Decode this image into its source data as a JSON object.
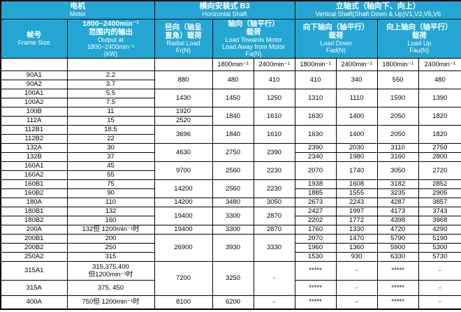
{
  "colors": {
    "header_bg": "#23a6d4",
    "header_text": "#ffffff",
    "border": "#000000",
    "body_text": "#000000",
    "page_bg": "#ffffff"
  },
  "table": {
    "header_row1": [
      {
        "name": "motor-group-header",
        "zh": "电机",
        "en": "Motor",
        "cs": 2
      },
      {
        "name": "horizontal-shaft-group-header",
        "zh": "横向安装式 B3",
        "en": "Horizontal Shaft",
        "cs": 3
      },
      {
        "name": "vertical-shaft-group-header",
        "zh": "立轴式（轴向下、向上）",
        "en": "Vertical Shaft(Shaft Down & Up)V1,V3,V5,V6",
        "cs": 4
      }
    ],
    "header_row2": [
      {
        "name": "frame-size-header",
        "zh": "帧号",
        "en": "Frame Size",
        "cs": 1
      },
      {
        "name": "output-header",
        "zh": "1800~2400min⁻¹\n范围内的输出",
        "en": "Output at\n1800~2400min⁻¹\n(kW)",
        "cs": 1
      },
      {
        "name": "radial-load-header",
        "zh": "径向（轴呈\n直角）载荷",
        "en": "Radial Load\nFr(N)",
        "cs": 1
      },
      {
        "name": "axial-load-header",
        "zh": "轴向（轴平行）\n载荷",
        "en": "Load Towards Motor\nLoad Away from Motor\nFa(N)",
        "cs": 2
      },
      {
        "name": "load-down-header",
        "zh": "向下轴向（轴平行）\n载荷",
        "en": "Load Down\nFad(N)",
        "cs": 2
      },
      {
        "name": "load-up-header",
        "zh": "向上轴向（轴平行）\n载荷",
        "en": "Load Up\nFau(N)",
        "cs": 2
      }
    ],
    "header_row3": [
      "",
      "",
      "",
      "1800min⁻¹",
      "2400min⁻¹",
      "1800min⁻¹",
      "2400min⁻¹",
      "1800min⁻¹",
      "2400min⁻¹"
    ],
    "columns": [
      "frame",
      "output",
      "fr",
      "fa-1800",
      "fa-2400",
      "fad-1800",
      "fad-2400",
      "fau-1800",
      "fau-2400"
    ],
    "rows": [
      [
        "90A1",
        "2.2",
        {
          "v": "880",
          "rs": 2
        },
        {
          "v": "480",
          "rs": 2
        },
        {
          "v": "410",
          "rs": 2
        },
        {
          "v": "410",
          "rs": 2
        },
        {
          "v": "340",
          "rs": 2
        },
        {
          "v": "550",
          "rs": 2
        },
        {
          "v": "480",
          "rs": 2
        }
      ],
      [
        "90A2",
        "3.7"
      ],
      [
        "100A1",
        "5.5",
        {
          "v": "1430",
          "rs": 2
        },
        {
          "v": "1450",
          "rs": 2
        },
        {
          "v": "1250",
          "rs": 2
        },
        {
          "v": "1310",
          "rs": 2
        },
        {
          "v": "1110",
          "rs": 2
        },
        {
          "v": "1590",
          "rs": 2
        },
        {
          "v": "1390",
          "rs": 2
        }
      ],
      [
        "100A2",
        "7.5"
      ],
      [
        "100B",
        "11",
        "1920",
        {
          "v": "1840",
          "rs": 2
        },
        {
          "v": "1610",
          "rs": 2
        },
        {
          "v": "1630",
          "rs": 2
        },
        {
          "v": "1400",
          "rs": 2
        },
        {
          "v": "2050",
          "rs": 2
        },
        {
          "v": "1820",
          "rs": 2
        }
      ],
      [
        "112A",
        "15",
        "2520"
      ],
      [
        "112B1",
        "18.5",
        {
          "v": "3696",
          "rs": 2
        },
        {
          "v": "1840",
          "rs": 2
        },
        {
          "v": "1610",
          "rs": 2
        },
        {
          "v": "1630",
          "rs": 2
        },
        {
          "v": "1400",
          "rs": 2
        },
        {
          "v": "2050",
          "rs": 2
        },
        {
          "v": "1820",
          "rs": 2
        }
      ],
      [
        "112B2",
        "22"
      ],
      [
        "132A",
        "30",
        {
          "v": "4630",
          "rs": 2
        },
        {
          "v": "2750",
          "rs": 2
        },
        {
          "v": "2390",
          "rs": 2
        },
        "2390",
        "2030",
        "3110",
        "2750"
      ],
      [
        "132B",
        "37",
        "2340",
        "1980",
        "3160",
        "2800"
      ],
      [
        "160A1",
        "45",
        {
          "v": "9700",
          "rs": 2
        },
        {
          "v": "2560",
          "rs": 2
        },
        {
          "v": "2230",
          "rs": 2
        },
        {
          "v": "2070",
          "rs": 2
        },
        {
          "v": "1740",
          "rs": 2
        },
        {
          "v": "3050",
          "rs": 2
        },
        {
          "v": "2720",
          "rs": 2
        }
      ],
      [
        "160A2",
        "55"
      ],
      [
        "160B1",
        "75",
        {
          "v": "14200",
          "rs": 2
        },
        {
          "v": "2560",
          "rs": 2
        },
        {
          "v": "2230",
          "rs": 2
        },
        "1938",
        "1608",
        "3182",
        "2852"
      ],
      [
        "160B2",
        "90",
        "1885",
        "1555",
        "3235",
        "2905"
      ],
      [
        "180A",
        "110",
        "14200",
        "3480",
        "3050",
        "2673",
        "2243",
        "4287",
        "3857"
      ],
      [
        "180B1",
        "132",
        {
          "v": "19400",
          "rs": 2
        },
        {
          "v": "3300",
          "rs": 2
        },
        {
          "v": "2870",
          "rs": 2
        },
        "2427",
        "1997",
        "4173",
        "3743"
      ],
      [
        "180B2",
        "160",
        "2202",
        "1772",
        "4398",
        "3968"
      ],
      [
        "200A",
        "132但 1200min⁻¹时",
        "19400",
        "3300",
        "2870",
        "1760",
        "1330",
        "4720",
        "4290"
      ],
      [
        "200B1",
        "200",
        {
          "v": "26900",
          "rs": 3
        },
        {
          "v": "3930",
          "rs": 3
        },
        {
          "v": "3330",
          "rs": 3
        },
        "2070",
        "1470",
        "5790",
        "5190"
      ],
      [
        "200B2",
        "250",
        "1960",
        "1360",
        "5900",
        "5300"
      ],
      [
        "250A2",
        "315",
        "1530",
        "930",
        "6330",
        "5730"
      ],
      [
        "315A1",
        "315,375,400\n但1200min⁻¹时",
        {
          "v": "7200",
          "rs": 2
        },
        {
          "v": "3250",
          "rs": 2
        },
        {
          "v": "-",
          "rs": 2
        },
        "*****",
        "-",
        "*****",
        "-"
      ],
      [
        "315A",
        "375, 450",
        "*****",
        "-",
        "*****",
        "-"
      ],
      [
        "400A",
        "750但 1200min⁻¹时",
        "8100",
        "6200",
        "-",
        "*****",
        "-",
        "*****",
        "-"
      ]
    ]
  }
}
